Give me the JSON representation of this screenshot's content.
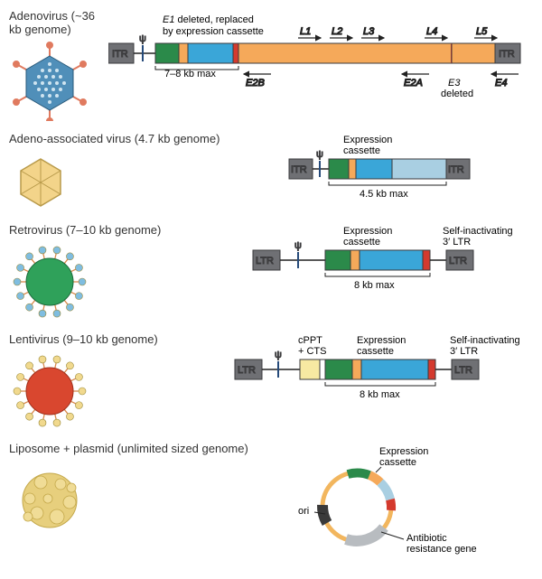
{
  "colors": {
    "itr": "#6f7074",
    "itr_stroke": "#3a3a3c",
    "orange": "#f5a95a",
    "green": "#2b8a4a",
    "blue": "#3aa6d8",
    "red": "#d43a2e",
    "cream": "#f7e9a2",
    "lightblue": "#a9cfe2",
    "arrow": "#222",
    "line": "#222",
    "retro_env": "#7fbde0",
    "retro_core": "#2fa15a",
    "lenti_env": "#f1d98e",
    "lenti_core": "#d9472f",
    "adeno_cap": "#508fb9",
    "adeno_fiber": "#e07a5f",
    "aav_hex": "#f3d48a",
    "lipo": "#e7cf7d",
    "plasmid_ring": "#f2b65e",
    "plasmid_ori": "#3a3a3a",
    "plasmid_amp": "#b8bcc0"
  },
  "adeno": {
    "title": "Adenovirus (~36 kb genome)",
    "e1_label": "E1 deleted, replaced\nby expression cassette",
    "capacity": "7–8 kb max",
    "itr": "ITR",
    "psi": "ψ",
    "L": [
      "L1",
      "L2",
      "L3",
      "L4",
      "L5"
    ],
    "E2B": "E2B",
    "E2A": "E2A",
    "E3": "E3\ndeleted",
    "E4": "E4"
  },
  "aav": {
    "title": "Adeno-associated virus (4.7 kb genome)",
    "expr": "Expression\ncassette",
    "capacity": "4.5 kb max",
    "itr": "ITR",
    "psi": "ψ"
  },
  "retro": {
    "title": "Retrovirus (7–10 kb genome)",
    "expr": "Expression\ncassette",
    "sin": "Self-inactivating\n3′ LTR",
    "capacity": "8 kb max",
    "ltr": "LTR",
    "psi": "ψ"
  },
  "lenti": {
    "title": "Lentivirus (9–10 kb genome)",
    "cppt": "cPPT\n+ CTS",
    "expr": "Expression\ncassette",
    "sin": "Self-inactivating\n3′ LTR",
    "capacity": "8 kb max",
    "ltr": "LTR",
    "psi": "ψ"
  },
  "lipo": {
    "title": "Liposome + plasmid (unlimited sized genome)",
    "expr": "Expression\ncassette",
    "ori": "ori",
    "amp": "Antibiotic\nresistance gene"
  }
}
